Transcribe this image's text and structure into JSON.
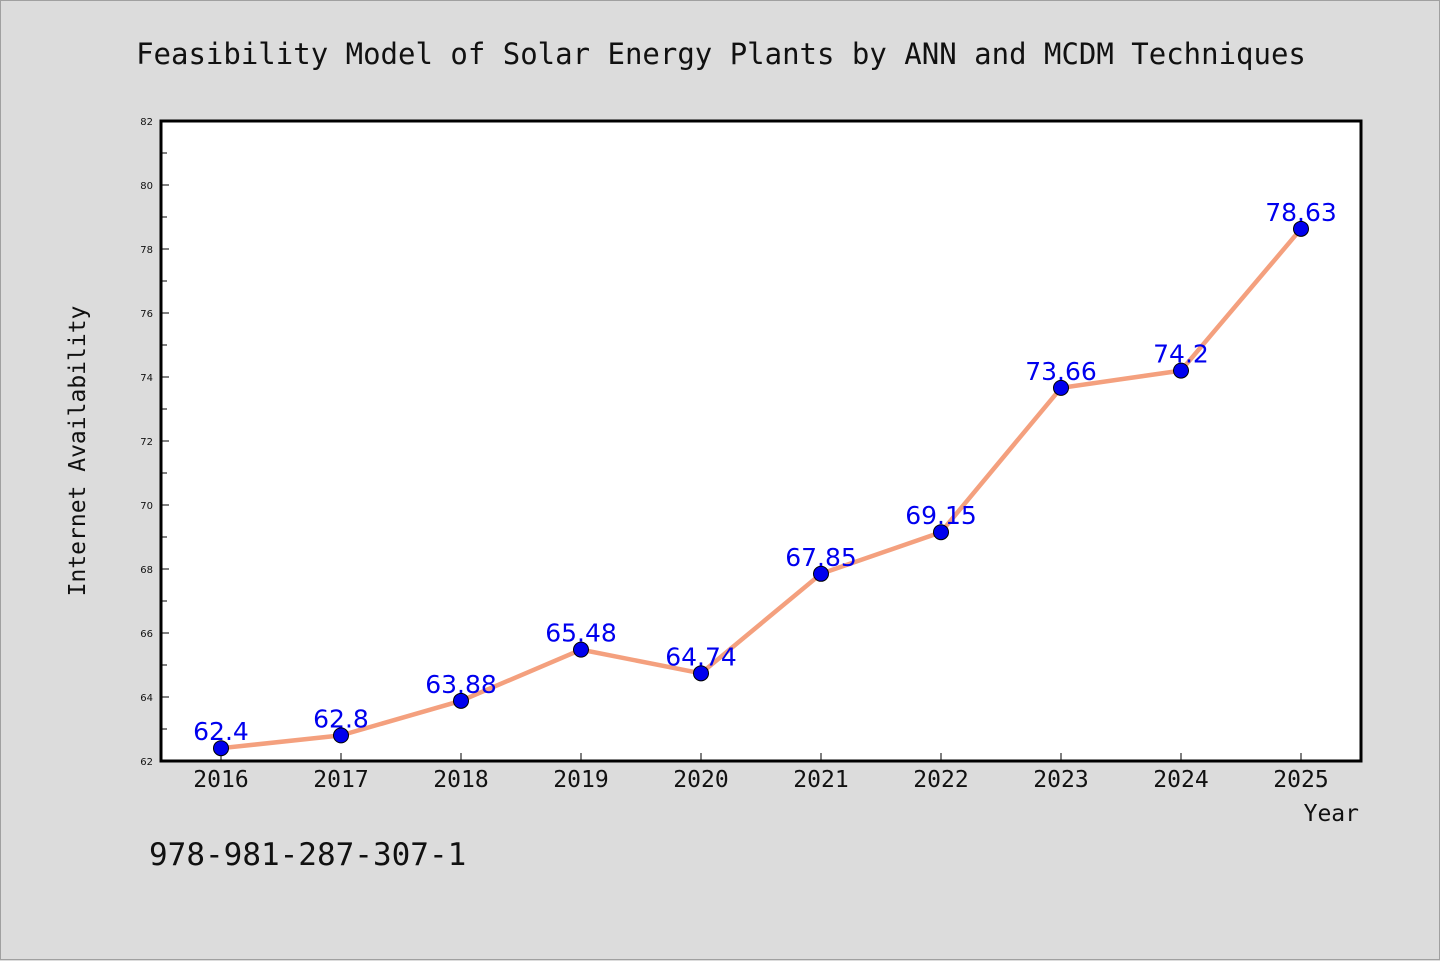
{
  "chart_data": {
    "type": "line",
    "title": "Feasibility Model of Solar Energy Plants by ANN and MCDM Techniques",
    "xlabel": "Year",
    "ylabel": "Internet Availability",
    "categories": [
      "2016",
      "2017",
      "2018",
      "2019",
      "2020",
      "2021",
      "2022",
      "2023",
      "2024",
      "2025"
    ],
    "series": [
      {
        "values": [
          62.4,
          62.8,
          63.88,
          65.48,
          64.74,
          67.85,
          69.15,
          73.66,
          74.2,
          78.63
        ],
        "labels": [
          "62.4",
          "62.8",
          "63.88",
          "65.48",
          "64.74",
          "67.85",
          "69.15",
          "73.66",
          "74.2",
          "78.63"
        ]
      }
    ],
    "ylim": [
      62,
      82
    ],
    "yticks": [
      62,
      64,
      66,
      68,
      70,
      72,
      74,
      76,
      78,
      80,
      82
    ],
    "grid": false,
    "colors": {
      "line": "#f4a07e",
      "marker": "#0000ee",
      "data_label": "#0000ee",
      "background": "#dcdcdc",
      "plot_background": "#ffffff"
    }
  },
  "footer": {
    "isbn": "978-981-287-307-1"
  }
}
